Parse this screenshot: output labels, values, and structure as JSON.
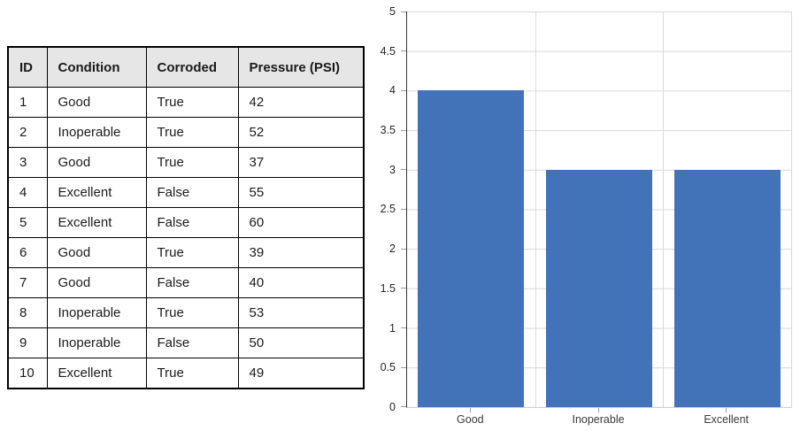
{
  "page": {
    "background": "#FFFFFF"
  },
  "table": {
    "headers": [
      "ID",
      "Condition",
      "Corroded",
      "Pressure (PSI)"
    ],
    "rows": [
      [
        "1",
        "Good",
        "True",
        "42"
      ],
      [
        "2",
        "Inoperable",
        "True",
        "52"
      ],
      [
        "3",
        "Good",
        "True",
        "37"
      ],
      [
        "4",
        "Excellent",
        "False",
        "55"
      ],
      [
        "5",
        "Excellent",
        "False",
        "60"
      ],
      [
        "6",
        "Good",
        "True",
        "39"
      ],
      [
        "7",
        "Good",
        "False",
        "40"
      ],
      [
        "8",
        "Inoperable",
        "True",
        "53"
      ],
      [
        "9",
        "Inoperable",
        "False",
        "50"
      ],
      [
        "10",
        "Excellent",
        "True",
        "49"
      ]
    ],
    "header_bg": "#E7E6E6",
    "border_color": "#000000"
  },
  "chart_data": {
    "type": "bar",
    "title": "",
    "xlabel": "",
    "ylabel": "",
    "categories": [
      "Good",
      "Inoperable",
      "Excellent"
    ],
    "values": [
      4,
      3,
      3
    ],
    "ylim": [
      0,
      5
    ],
    "ytick_step": 0.5,
    "yticks_top_to_bottom": [
      "5",
      "4.5",
      "4",
      "3.5",
      "3",
      "2.5",
      "2",
      "1.5",
      "1",
      "0.5",
      "0"
    ],
    "grid": true,
    "legend": false,
    "bar_color": "#4272B8",
    "gridline_color": "#D9D9D9",
    "axis_line_color": "#333333",
    "tick_color": "#9B9B9B"
  }
}
